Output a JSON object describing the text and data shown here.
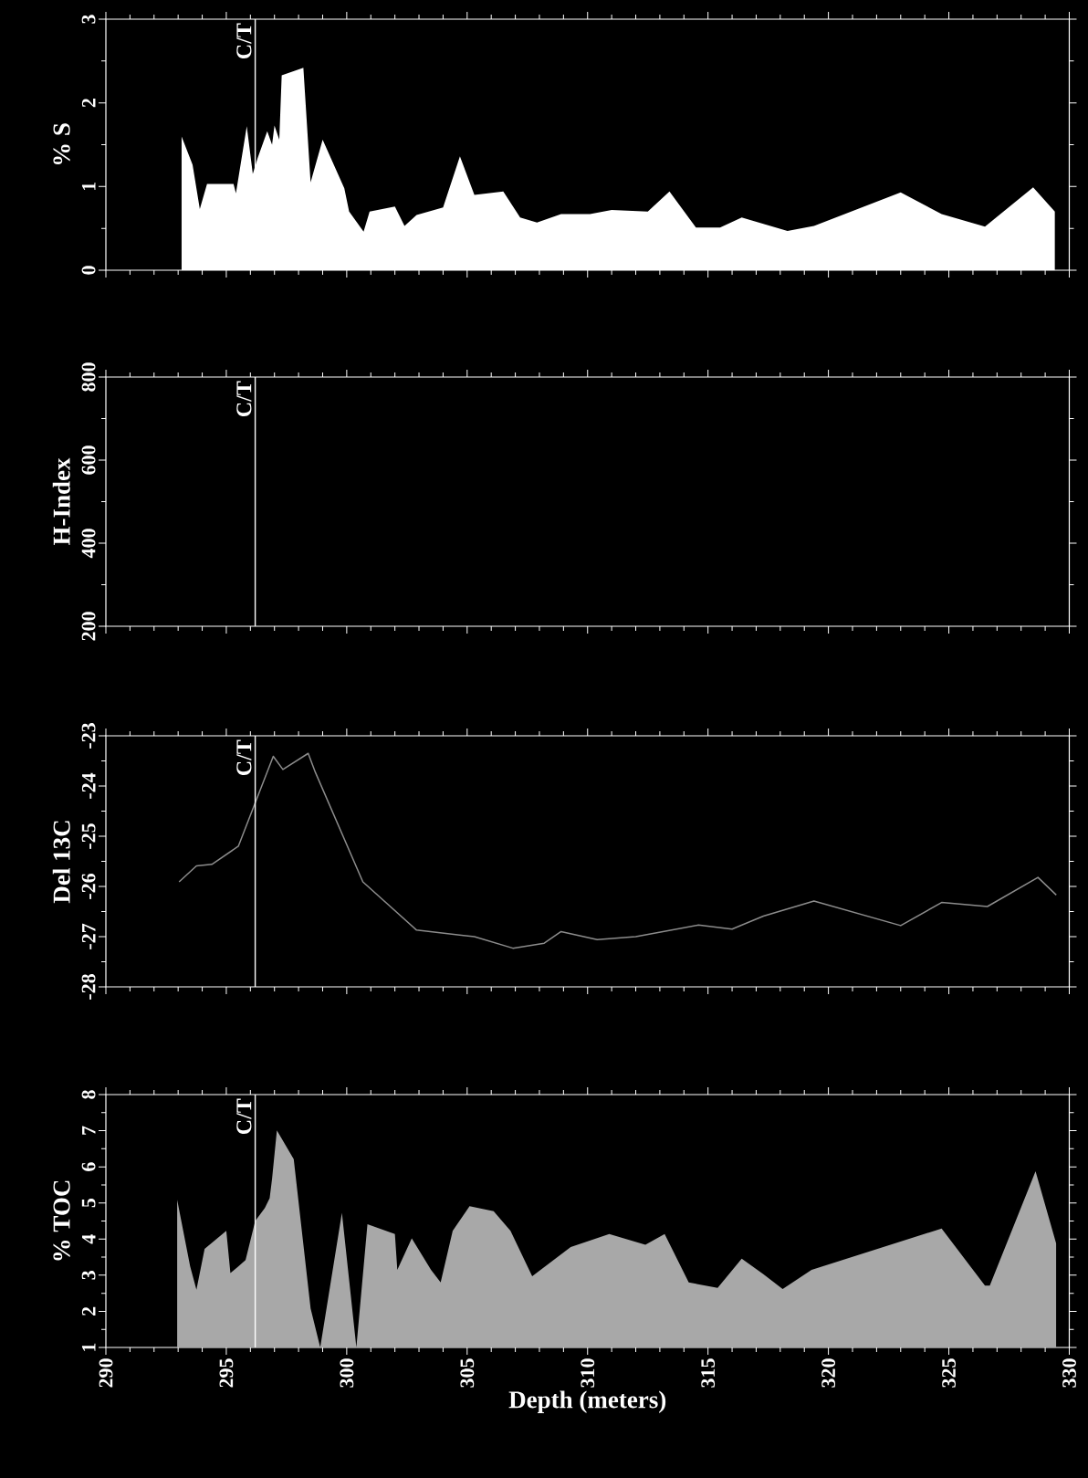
{
  "chart_data": [
    {
      "type": "area",
      "ylabel": "% S",
      "xlim": [
        290,
        330
      ],
      "xticks": [
        290,
        295,
        300,
        305,
        310,
        315,
        320,
        325,
        330
      ],
      "ylim": [
        0,
        3
      ],
      "yticks": [
        0,
        1,
        2,
        3
      ],
      "tick_labels": "y",
      "color": "#ffffff",
      "x": [
        293.14,
        293.6,
        293.9,
        294.2,
        295.3,
        295.4,
        295.85,
        296.1,
        296.3,
        296.7,
        296.9,
        297.0,
        297.2,
        297.3,
        298.2,
        298.5,
        299.0,
        299.9,
        300.1,
        300.7,
        300.95,
        302.0,
        302.4,
        302.9,
        304.0,
        304.7,
        305.3,
        306.5,
        307.2,
        307.9,
        308.9,
        310.1,
        311.0,
        312.5,
        313.4,
        314.5,
        315.5,
        316.4,
        318.3,
        319.4,
        323.0,
        324.7,
        326.5,
        328.5,
        329.4
      ],
      "values": [
        1.6,
        1.26,
        0.73,
        1.03,
        1.03,
        0.92,
        1.72,
        1.15,
        1.34,
        1.66,
        1.5,
        1.73,
        1.56,
        2.33,
        2.42,
        1.05,
        1.56,
        0.98,
        0.7,
        0.46,
        0.7,
        0.76,
        0.53,
        0.66,
        0.75,
        1.36,
        0.9,
        0.94,
        0.63,
        0.57,
        0.67,
        0.67,
        0.72,
        0.7,
        0.94,
        0.51,
        0.51,
        0.63,
        0.47,
        0.53,
        0.93,
        0.67,
        0.52,
        0.99,
        0.7
      ],
      "ref_lines": [
        {
          "axis": "x",
          "value": 296.2,
          "label": "C/T"
        }
      ]
    },
    {
      "type": "line",
      "ylabel": "H-Index",
      "xlim": [
        290,
        330
      ],
      "xticks": [
        290,
        295,
        300,
        305,
        310,
        315,
        320,
        325,
        330
      ],
      "ylim": [
        200,
        800
      ],
      "yticks": [
        200,
        400,
        600,
        800
      ],
      "tick_labels": "y",
      "ref_lines": [
        {
          "axis": "x",
          "value": 296.2,
          "label": "C/T"
        }
      ]
    },
    {
      "type": "line",
      "ylabel": "Del 13C",
      "xlim": [
        290,
        330
      ],
      "xticks": [
        290,
        295,
        300,
        305,
        310,
        315,
        320,
        325,
        330
      ],
      "ylim": [
        -28,
        -23
      ],
      "yticks": [
        -28,
        -27,
        -26,
        -25,
        -24,
        -23
      ],
      "tick_labels": "y",
      "color": "#8c8c8c",
      "x": [
        293.04,
        293.76,
        294.4,
        295.5,
        296.95,
        297.35,
        298.4,
        298.7,
        300.67,
        302.9,
        305.3,
        306.9,
        308.2,
        308.9,
        310.4,
        312.0,
        314.6,
        316.0,
        317.3,
        319.4,
        323.0,
        324.7,
        326.6,
        328.7,
        329.46
      ],
      "values": [
        -25.91,
        -25.59,
        -25.56,
        -25.2,
        -23.41,
        -23.67,
        -23.35,
        -23.73,
        -25.91,
        -26.87,
        -27.0,
        -27.23,
        -27.13,
        -26.9,
        -27.06,
        -27.0,
        -26.77,
        -26.85,
        -26.59,
        -26.29,
        -26.78,
        -26.32,
        -26.4,
        -25.82,
        -26.17
      ],
      "ref_lines": [
        {
          "axis": "x",
          "value": 296.2,
          "label": "C/T"
        }
      ]
    },
    {
      "type": "area",
      "ylabel": "% TOC",
      "xlabel": "Depth (meters)",
      "xlim": [
        290,
        330
      ],
      "xticks": [
        290,
        295,
        300,
        305,
        310,
        315,
        320,
        325,
        330
      ],
      "ylim": [
        1,
        8
      ],
      "yticks": [
        1,
        2,
        3,
        4,
        5,
        6,
        7,
        8
      ],
      "color": "#a8a8a8",
      "x": [
        292.96,
        293.5,
        293.76,
        294.1,
        295.0,
        295.17,
        295.5,
        295.8,
        296.2,
        296.6,
        296.8,
        296.9,
        297.1,
        297.8,
        298.5,
        298.9,
        299.8,
        300.4,
        300.86,
        302.0,
        302.1,
        302.7,
        303.5,
        303.9,
        304.4,
        305.1,
        306.1,
        306.8,
        307.7,
        309.3,
        310.9,
        312.4,
        313.2,
        314.2,
        315.4,
        316.4,
        317.3,
        318.1,
        319.3,
        324.7,
        326.5,
        326.7,
        328.6,
        329.46
      ],
      "values": [
        5.09,
        3.24,
        2.6,
        3.73,
        4.23,
        3.06,
        3.24,
        3.42,
        4.5,
        4.86,
        5.13,
        5.67,
        7.01,
        6.21,
        2.08,
        1.0,
        4.73,
        1.0,
        4.41,
        4.14,
        3.15,
        4.02,
        3.15,
        2.8,
        4.23,
        4.91,
        4.77,
        4.23,
        2.97,
        3.78,
        4.14,
        3.84,
        4.14,
        2.8,
        2.65,
        3.46,
        3.03,
        2.62,
        3.15,
        4.29,
        2.71,
        2.71,
        5.88,
        3.87
      ],
      "ref_lines": [
        {
          "axis": "x",
          "value": 296.2,
          "label": "C/T"
        }
      ]
    }
  ]
}
